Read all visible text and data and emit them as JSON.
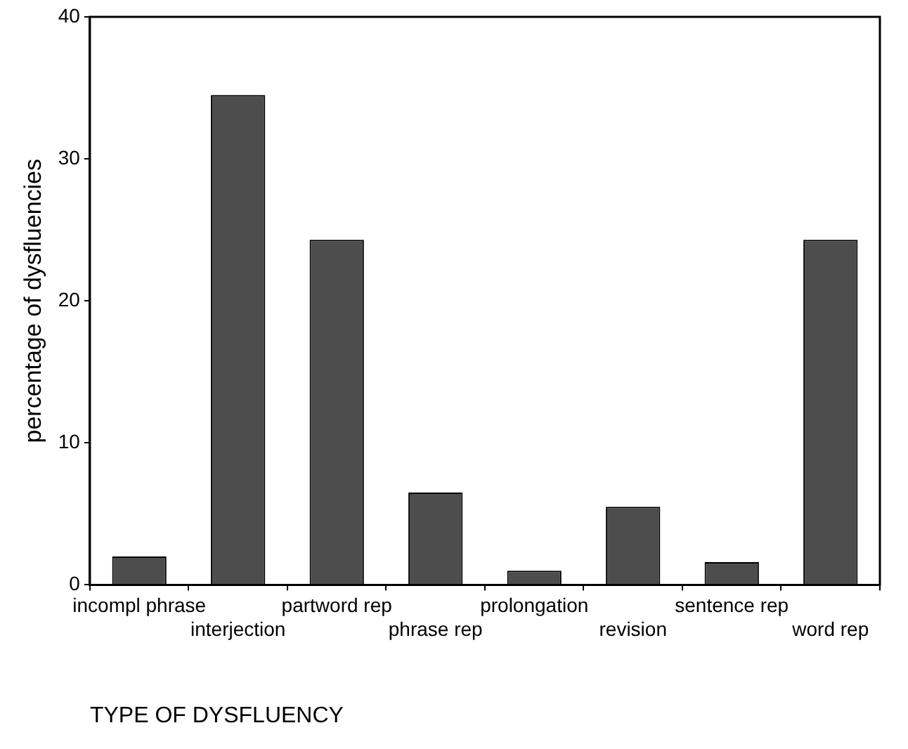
{
  "chart_data": {
    "type": "bar",
    "xlabel": "TYPE OF DYSFLUENCY",
    "ylabel": "percentage of dysfluencies",
    "categories": [
      "incompl phrase",
      "interjection",
      "partword rep",
      "phrase rep",
      "prolongation",
      "revision",
      "sentence rep",
      "word rep"
    ],
    "values": [
      2,
      34.5,
      24.3,
      6.5,
      1,
      5.5,
      1.6,
      24.3
    ],
    "color": "#4d4d4d",
    "ylim": [
      0,
      40
    ],
    "yticks": [
      0,
      10,
      20,
      30,
      40
    ],
    "grid": false,
    "legend": false
  }
}
